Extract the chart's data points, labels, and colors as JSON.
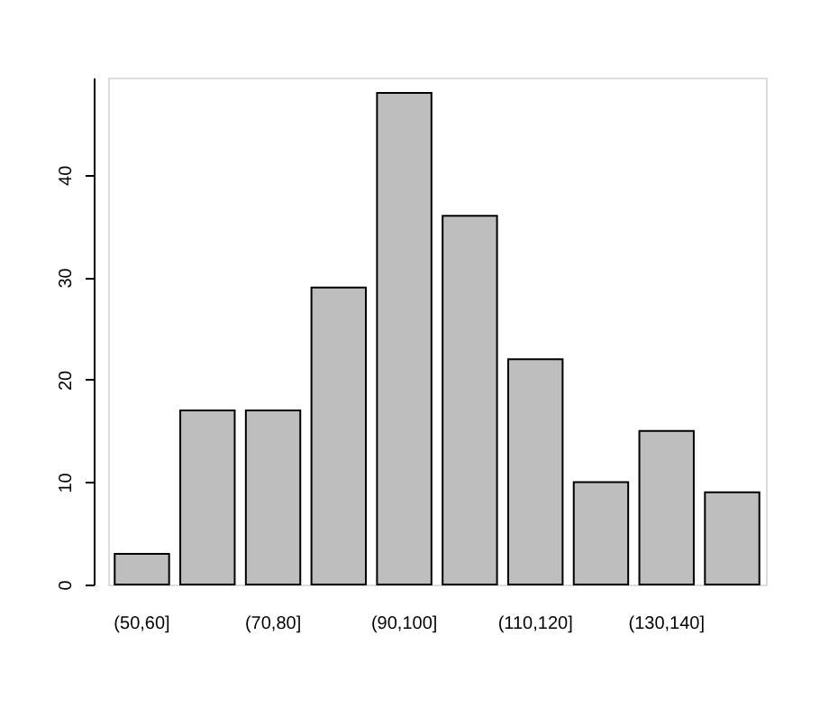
{
  "chart_data": {
    "type": "bar",
    "categories": [
      "(50,60]",
      null,
      "(70,80]",
      null,
      "(90,100]",
      null,
      "(110,120]",
      null,
      "(130,140]",
      null
    ],
    "values": [
      3,
      17,
      17,
      29,
      48,
      36,
      22,
      10,
      15,
      9
    ],
    "color": "#bebebe",
    "ylim": [
      0,
      49.5
    ],
    "yticks": [
      0,
      10,
      20,
      30,
      40
    ],
    "grid": false
  }
}
